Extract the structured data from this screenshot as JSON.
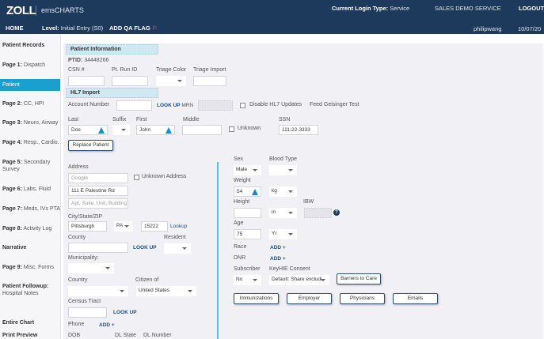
{
  "header": {
    "logo": "ZOLL",
    "app": "emsCHARTS",
    "login_type_label": "Current Login Type:",
    "login_type": "Service",
    "agency": "SALES DEMO SERVICE",
    "logout": "LOGOUT",
    "home": "HOME",
    "level_label": "Level:",
    "level": "Initial Entry (S0)",
    "add_qa_flag": "ADD QA FLAG",
    "user": "philipwang",
    "date": "10/07/20"
  },
  "sidebar": {
    "items": [
      {
        "bold": "Patient Records",
        "rest": ""
      },
      {
        "bold": "Page 1:",
        "rest": " Dispatch"
      },
      {
        "bold": "",
        "rest": "Patient"
      },
      {
        "bold": "Page 2:",
        "rest": " CC, HPI"
      },
      {
        "bold": "Page 3:",
        "rest": " Neuro, Airway"
      },
      {
        "bold": "Page 4:",
        "rest": " Resp., Cardio."
      },
      {
        "bold": "Page 5:",
        "rest": " Secondary Survey"
      },
      {
        "bold": "Page 6:",
        "rest": " Labs, Fluid"
      },
      {
        "bold": "Page 7:",
        "rest": " Meds, IVs PTA"
      },
      {
        "bold": "Page 8:",
        "rest": " Activity Log"
      },
      {
        "bold": "Narrative",
        "rest": ""
      },
      {
        "bold": "Page 9:",
        "rest": " Misc. Forms"
      },
      {
        "bold": "Patient Followup:",
        "rest": " Hospital Notes"
      },
      {
        "bold": "Entire Chart",
        "rest": ""
      },
      {
        "bold": "Print Preview",
        "rest": ""
      }
    ],
    "active": "Patient"
  },
  "patient_info": {
    "title": "Patient Information",
    "ptid_label": "PTID:",
    "ptid": "34448266",
    "csn_label": "CSN #",
    "run_id_label": "Pt. Run ID",
    "triage_color_label": "Triage Color",
    "triage_import_label": "Triage Import"
  },
  "hl7": {
    "title": "HL7 Import",
    "account_label": "Account Number",
    "lookup": "LOOK UP",
    "mrn": "MRN",
    "disable_label": "Disable HL7 Updates",
    "feed": "Feed Geisinger Test"
  },
  "name": {
    "last_label": "Last",
    "last": "Doe",
    "suffix_label": "Suffix",
    "first_label": "First",
    "first": "John",
    "middle_label": "Middle",
    "unknown_label": "Unknown",
    "ssn_label": "SSN",
    "ssn": "111-22-3333",
    "replace": "Replace Patient"
  },
  "address": {
    "label": "Address",
    "line1_placeholder": "Google",
    "unknown_label": "Unknown Address",
    "line2": "111 E Palestine Rd",
    "line3_placeholder": "Apt, Suite, Unit, Building",
    "csz_label": "City/State/ZIP",
    "city": "Pittsburgh",
    "state": "PA",
    "zip": "15222",
    "zip_lookup": "Lookup",
    "county_label": "County",
    "county_lookup": "LOOK UP",
    "resident_label": "Resident",
    "municipality_label": "Municipality:",
    "country_label": "Country",
    "citizen_label": "Citizen of",
    "citizen": "United States",
    "census_label": "Census Tract",
    "census_lookup": "LOOK UP",
    "phone_label": "Phone",
    "phone_add": "ADD +",
    "dob_label": "DOB",
    "dl_state_label": "DL State",
    "dl_number_label": "DL Number"
  },
  "demo": {
    "sex_label": "Sex",
    "sex": "Male",
    "blood_label": "Blood Type",
    "weight_label": "Weight",
    "weight": "54",
    "weight_unit": "kg",
    "height_label": "Height",
    "height_unit": "in",
    "ibw_label": "IBW",
    "age_label": "Age",
    "age": "75",
    "age_unit": "Yr",
    "race_label": "Race",
    "race_add": "ADD +",
    "dnr_label": "DNR",
    "dnr_add": "ADD +",
    "subscriber_label": "Subscriber",
    "subscriber": "No",
    "keyhie_label": "KeyHIE Consent",
    "keyhie": "Default: Share excludi",
    "barriers": "Barriers to Care",
    "buttons": [
      "Immunizations",
      "Employer",
      "Physicians",
      "Emails"
    ]
  },
  "colors": {
    "header": "#1d3a5c",
    "active": "#1aa0cc",
    "section": "#cfe8f1"
  }
}
